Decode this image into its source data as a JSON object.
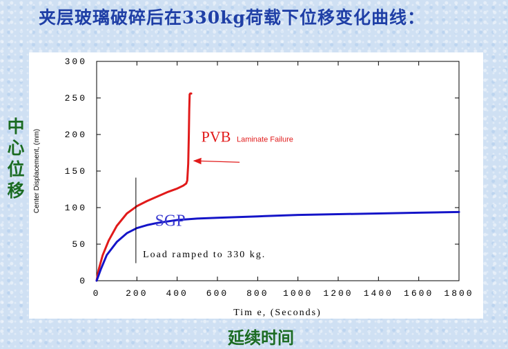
{
  "page": {
    "title": "夹层玻璃破碎后在330kg荷载下位移变化曲线：",
    "ylabel_cn": "中心位移",
    "xlabel_cn": "延续时间"
  },
  "chart_data": {
    "type": "line",
    "xlabel": "Tim e, (Seconds)",
    "ylabel": "Center Displacement, (mm)",
    "xlim": [
      0,
      1800
    ],
    "ylim": [
      0,
      300
    ],
    "x_ticks": [
      "0",
      "200",
      "400",
      "600",
      "800",
      "1000",
      "1200",
      "1400",
      "1600",
      "1800"
    ],
    "y_ticks": [
      "0",
      "50",
      "100",
      "150",
      "200",
      "250",
      "300"
    ],
    "grid": false,
    "series": [
      {
        "name": "PVB",
        "color": "#e11a1a",
        "x": [
          0,
          10,
          30,
          60,
          100,
          150,
          200,
          250,
          300,
          350,
          400,
          430,
          445,
          450,
          455,
          458,
          460,
          462,
          465,
          470
        ],
        "y": [
          0,
          15,
          35,
          55,
          75,
          92,
          102,
          109,
          115,
          121,
          126,
          130,
          133,
          137,
          160,
          200,
          235,
          255,
          256,
          256
        ]
      },
      {
        "name": "SGP",
        "color": "#1414c8",
        "x": [
          0,
          20,
          50,
          100,
          150,
          200,
          250,
          300,
          400,
          500,
          600,
          800,
          1000,
          1200,
          1400,
          1600,
          1800
        ],
        "y": [
          0,
          15,
          35,
          53,
          65,
          72,
          76,
          79,
          83,
          85,
          86,
          88,
          90,
          91,
          92,
          93,
          94
        ]
      }
    ],
    "annotations": {
      "pvb_label": "PVB",
      "pvb_note": "Laminate Failure",
      "sgp_label": "SGP",
      "load_note": "Load ramped to 330 kg.",
      "load_marker_x": 195
    }
  }
}
